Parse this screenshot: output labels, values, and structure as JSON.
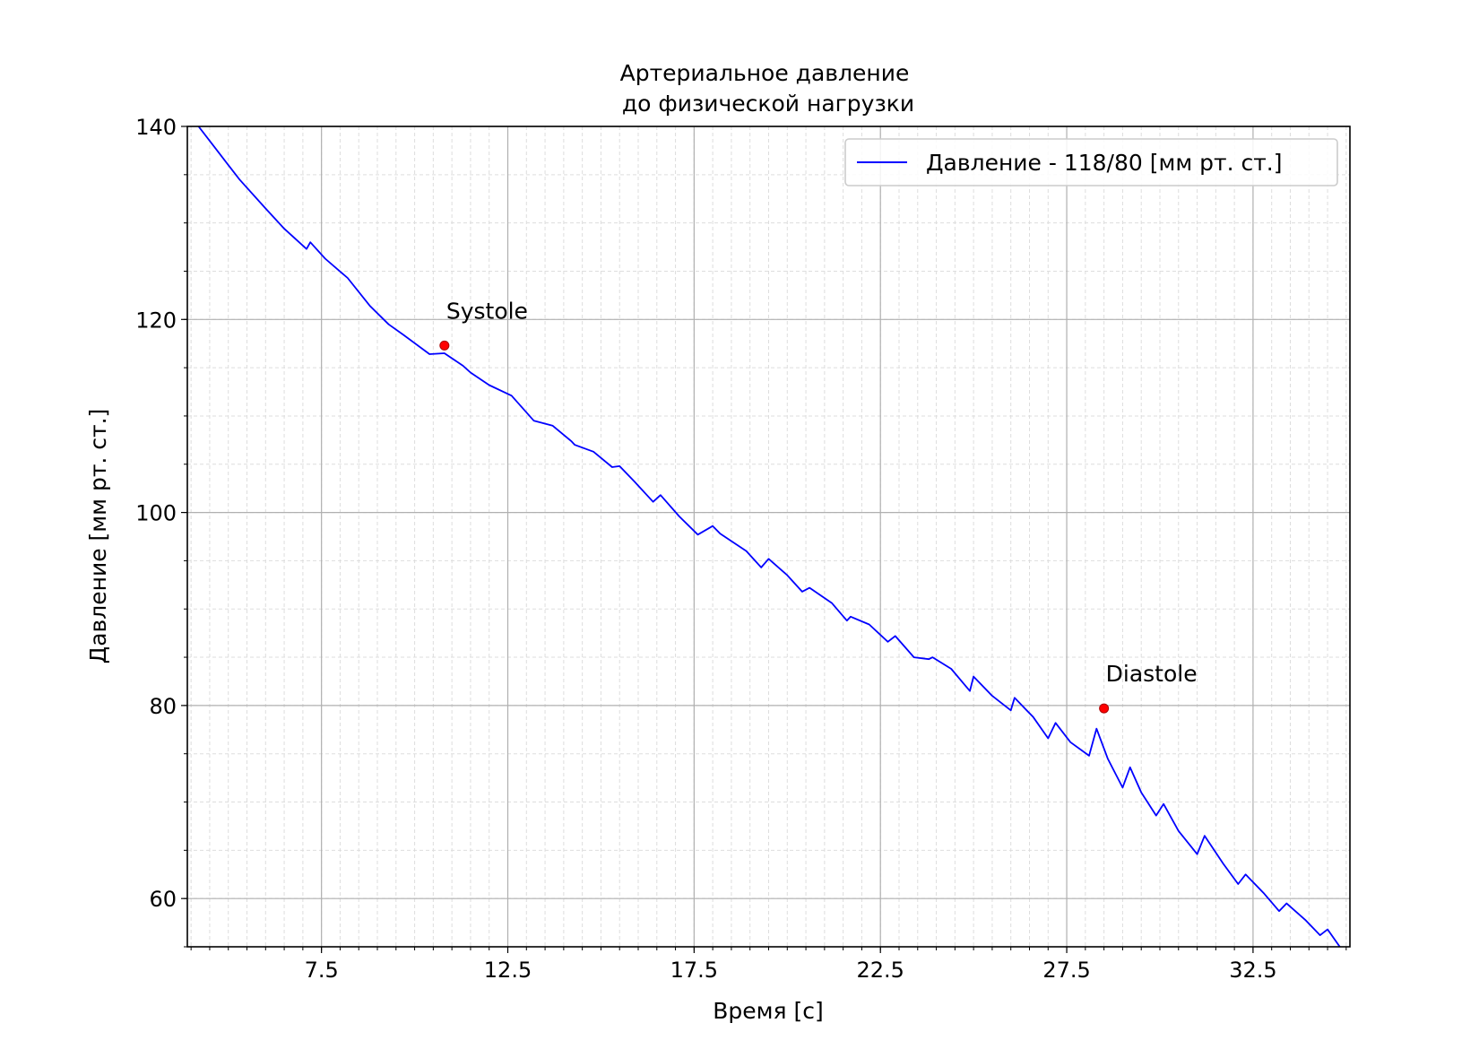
{
  "chart_data": {
    "type": "line",
    "title_line1": "Артериальное давление",
    "title_line2": " до физической нагрузки",
    "xlabel": "Время [с]",
    "ylabel": "Давление [мм рт. ст.]",
    "xlim": [
      3.9,
      35.1
    ],
    "ylim": [
      55,
      140
    ],
    "xticks": [
      7.5,
      12.5,
      17.5,
      22.5,
      27.5,
      32.5
    ],
    "xtick_labels": [
      "7.5",
      "12.5",
      "17.5",
      "22.5",
      "27.5",
      "32.5"
    ],
    "yticks": [
      60,
      80,
      100,
      120,
      140
    ],
    "ytick_labels": [
      "60",
      "80",
      "100",
      "120",
      "140"
    ],
    "grid": true,
    "minor_grid": true,
    "legend_position": "top-right",
    "colors": {
      "line": "#0000ff",
      "markers": "#ff0000"
    },
    "series": [
      {
        "name": "Давление - 118/80 [мм рт. ст.]",
        "x": [
          4.2,
          4.7,
          5.0,
          5.3,
          6.0,
          6.5,
          7.1,
          7.2,
          7.6,
          8.2,
          8.8,
          9.3,
          9.7,
          10.4,
          10.8,
          11.3,
          11.5,
          12.0,
          12.6,
          13.2,
          13.7,
          14.2,
          14.3,
          14.8,
          15.3,
          15.5,
          15.9,
          16.4,
          16.6,
          17.1,
          17.6,
          18.0,
          18.2,
          18.9,
          19.3,
          19.5,
          20.0,
          20.4,
          20.6,
          21.2,
          21.6,
          21.7,
          22.2,
          22.7,
          22.9,
          23.4,
          23.8,
          23.9,
          24.4,
          24.9,
          25.0,
          25.5,
          26.0,
          26.1,
          26.6,
          27.0,
          27.2,
          27.6,
          28.1,
          28.3,
          28.6,
          29.0,
          29.2,
          29.5,
          29.9,
          30.1,
          30.5,
          31.0,
          31.2,
          31.7,
          32.1,
          32.3,
          32.8,
          33.2,
          33.4,
          33.9,
          34.3,
          34.5,
          35.1
        ],
        "y": [
          140,
          137.5,
          136.0,
          134.5,
          131.5,
          129.4,
          127.3,
          128.0,
          126.3,
          124.3,
          121.4,
          119.5,
          118.4,
          116.4,
          116.5,
          115.2,
          114.5,
          113.2,
          112.1,
          109.5,
          109.0,
          107.4,
          107.0,
          106.3,
          104.7,
          104.8,
          103.2,
          101.1,
          101.8,
          99.6,
          97.7,
          98.6,
          97.8,
          96.0,
          94.3,
          95.2,
          93.5,
          91.8,
          92.2,
          90.6,
          88.8,
          89.2,
          88.4,
          86.6,
          87.2,
          85.0,
          84.8,
          85.0,
          83.8,
          81.5,
          83.0,
          81.0,
          79.5,
          80.8,
          78.8,
          76.6,
          78.2,
          76.2,
          74.8,
          77.6,
          74.5,
          71.5,
          73.6,
          71.0,
          68.6,
          69.8,
          67.0,
          64.6,
          66.5,
          63.6,
          61.5,
          62.5,
          60.5,
          58.7,
          59.5,
          57.8,
          56.2,
          56.8,
          53.5
        ]
      }
    ],
    "annotations": [
      {
        "label": "Systole",
        "x": 10.8,
        "y": 117.3
      },
      {
        "label": "Diastole",
        "x": 28.5,
        "y": 79.7
      }
    ]
  }
}
